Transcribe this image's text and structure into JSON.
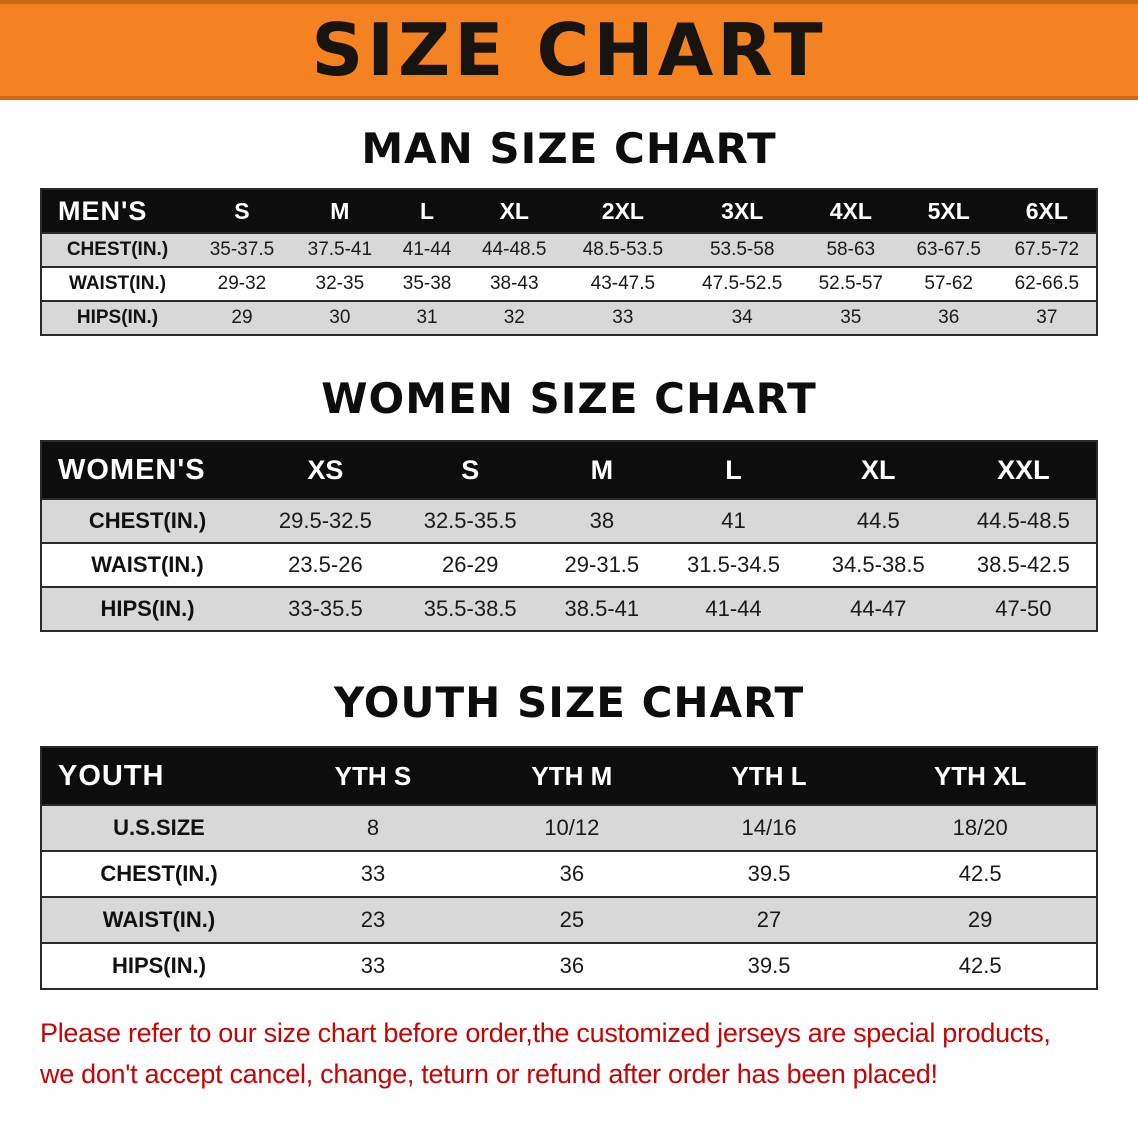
{
  "banner": {
    "title": "SIZE CHART",
    "bg_color": "#f58220"
  },
  "sections": {
    "men": {
      "heading": "MAN SIZE CHART",
      "table": {
        "header_label": "MEN'S",
        "columns": [
          "S",
          "M",
          "L",
          "XL",
          "2XL",
          "3XL",
          "4XL",
          "5XL",
          "6XL"
        ],
        "rows": [
          {
            "label": "CHEST(IN.)",
            "values": [
              "35-37.5",
              "37.5-41",
              "41-44",
              "44-48.5",
              "48.5-53.5",
              "53.5-58",
              "58-63",
              "63-67.5",
              "67.5-72"
            ]
          },
          {
            "label": "WAIST(IN.)",
            "values": [
              "29-32",
              "32-35",
              "35-38",
              "38-43",
              "43-47.5",
              "47.5-52.5",
              "52.5-57",
              "57-62",
              "62-66.5"
            ]
          },
          {
            "label": "HIPS(IN.)",
            "values": [
              "29",
              "30",
              "31",
              "32",
              "33",
              "34",
              "35",
              "36",
              "37"
            ]
          }
        ]
      }
    },
    "women": {
      "heading": "WOMEN SIZE CHART",
      "table": {
        "header_label": "WOMEN'S",
        "columns": [
          "XS",
          "S",
          "M",
          "L",
          "XL",
          "XXL"
        ],
        "rows": [
          {
            "label": "CHEST(IN.)",
            "values": [
              "29.5-32.5",
              "32.5-35.5",
              "38",
              "41",
              "44.5",
              "44.5-48.5"
            ]
          },
          {
            "label": "WAIST(IN.)",
            "values": [
              "23.5-26",
              "26-29",
              "29-31.5",
              "31.5-34.5",
              "34.5-38.5",
              "38.5-42.5"
            ]
          },
          {
            "label": "HIPS(IN.)",
            "values": [
              "33-35.5",
              "35.5-38.5",
              "38.5-41",
              "41-44",
              "44-47",
              "47-50"
            ]
          }
        ]
      }
    },
    "youth": {
      "heading": "YOUTH SIZE CHART",
      "table": {
        "header_label": "YOUTH",
        "columns": [
          "YTH S",
          "YTH M",
          "YTH L",
          "YTH XL"
        ],
        "rows": [
          {
            "label": "U.S.SIZE",
            "values": [
              "8",
              "10/12",
              "14/16",
              "18/20"
            ]
          },
          {
            "label": "CHEST(IN.)",
            "values": [
              "33",
              "36",
              "39.5",
              "42.5"
            ]
          },
          {
            "label": "WAIST(IN.)",
            "values": [
              "23",
              "25",
              "27",
              "29"
            ]
          },
          {
            "label": "HIPS(IN.)",
            "values": [
              "33",
              "36",
              "39.5",
              "42.5"
            ]
          }
        ]
      }
    }
  },
  "footer_note": {
    "line1": "Please refer to our size chart before order,the customized jerseys are special products,",
    "line2": "we don't accept cancel, change, teturn or refund after order has been placed!",
    "color": "#c40505"
  }
}
